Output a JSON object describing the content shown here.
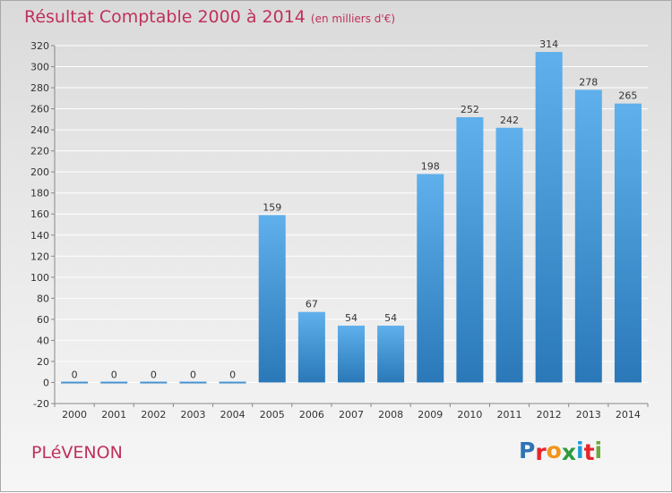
{
  "header": {
    "title": "Résultat Comptable 2000 à 2014",
    "subtitle": "(en milliers d'€)"
  },
  "footer": {
    "commune": "PLéVENON",
    "logo_letters": [
      "P",
      "r",
      "o",
      "x",
      "i",
      "t",
      "i"
    ],
    "logo_colors": [
      "#2f73b6",
      "#e8242b",
      "#f29418",
      "#2f9a3e",
      "#1e9bd7",
      "#e8242b",
      "#6aa83b"
    ]
  },
  "colors": {
    "title": "#c0305b",
    "bar_light": "#5fb0ec",
    "bar_dark": "#2a78b8",
    "grid": "#ffffff",
    "axis": "#888888"
  },
  "chart_data": {
    "type": "bar",
    "title": "Résultat Comptable 2000 à 2014",
    "subtitle": "(en milliers d'€)",
    "xlabel": "",
    "ylabel": "",
    "categories": [
      "2000",
      "2001",
      "2002",
      "2003",
      "2004",
      "2005",
      "2006",
      "2007",
      "2008",
      "2009",
      "2010",
      "2011",
      "2012",
      "2013",
      "2014"
    ],
    "values": [
      0,
      0,
      0,
      0,
      0,
      159,
      67,
      54,
      54,
      198,
      252,
      242,
      314,
      278,
      265
    ],
    "ylim": [
      -20,
      320
    ],
    "yticks": [
      -20,
      0,
      20,
      40,
      60,
      80,
      100,
      120,
      140,
      160,
      180,
      200,
      220,
      240,
      260,
      280,
      300,
      320
    ],
    "grid": true,
    "legend": "none"
  }
}
